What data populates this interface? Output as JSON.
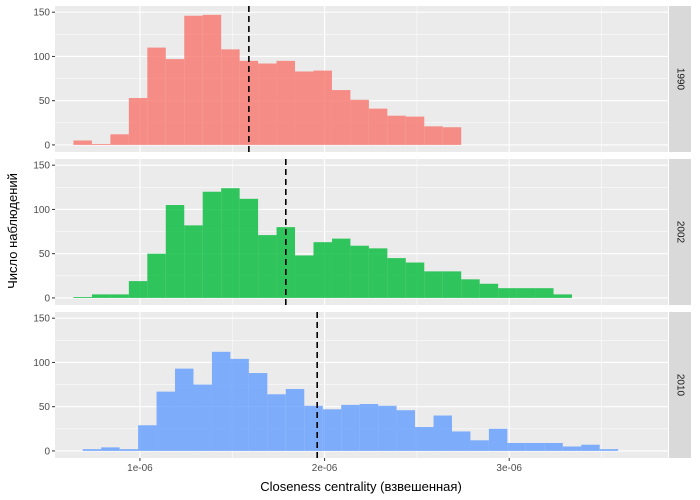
{
  "chart_data": {
    "type": "bar",
    "subtype": "faceted-histogram",
    "xlabel": "Closeness centrality (взвешенная)",
    "ylabel": "Число наблюдений",
    "xlim": [
      5.4e-07,
      3.86e-06
    ],
    "ylim": [
      -8,
      157
    ],
    "x_ticks": [
      1e-06,
      2e-06,
      3e-06
    ],
    "x_tick_labels": [
      "1e-06",
      "2e-06",
      "3e-06"
    ],
    "y_ticks": [
      0,
      50,
      100,
      150
    ],
    "y_tick_labels": [
      "0",
      "50",
      "100",
      "150"
    ],
    "bin_width": 1e-07,
    "grid": true,
    "legend": "none",
    "panels": [
      {
        "label": "1990",
        "color": "#F8766D",
        "mean_line": 1.59e-06,
        "bin_starts": [
          6.4e-07,
          7.4e-07,
          8.4e-07,
          9.4e-07,
          1.04e-06,
          1.14e-06,
          1.24e-06,
          1.34e-06,
          1.44e-06,
          1.54e-06,
          1.64e-06,
          1.74e-06,
          1.84e-06,
          1.94e-06,
          2.04e-06,
          2.14e-06,
          2.24e-06,
          2.34e-06,
          2.44e-06,
          2.54e-06,
          2.64e-06
        ],
        "values": [
          5,
          1,
          12,
          53,
          110,
          97,
          146,
          147,
          108,
          95,
          92,
          95,
          83,
          84,
          62,
          51,
          41,
          33,
          32,
          21,
          20
        ]
      },
      {
        "label": "2002",
        "color": "#00BA38",
        "mean_line": 1.79e-06,
        "bin_starts": [
          6.4e-07,
          7.4e-07,
          8.4e-07,
          9.4e-07,
          1.04e-06,
          1.14e-06,
          1.24e-06,
          1.34e-06,
          1.44e-06,
          1.54e-06,
          1.64e-06,
          1.74e-06,
          1.84e-06,
          1.94e-06,
          2.04e-06,
          2.14e-06,
          2.24e-06,
          2.34e-06,
          2.44e-06,
          2.54e-06,
          2.64e-06,
          2.74e-06,
          2.84e-06,
          2.94e-06,
          3.04e-06,
          3.14e-06,
          3.24e-06,
          3.34e-06
        ],
        "values": [
          1,
          4,
          4,
          19,
          50,
          105,
          82,
          120,
          124,
          112,
          71,
          80,
          48,
          63,
          67,
          59,
          56,
          45,
          40,
          30,
          30,
          21,
          16,
          11,
          11,
          11,
          4,
          0
        ]
      },
      {
        "label": "2010",
        "color": "#619CFF",
        "mean_line": 1.96e-06,
        "bin_starts": [
          6.9e-07,
          7.9e-07,
          8.9e-07,
          9.9e-07,
          1.09e-06,
          1.19e-06,
          1.29e-06,
          1.39e-06,
          1.49e-06,
          1.59e-06,
          1.69e-06,
          1.79e-06,
          1.89e-06,
          1.99e-06,
          2.09e-06,
          2.19e-06,
          2.29e-06,
          2.39e-06,
          2.49e-06,
          2.59e-06,
          2.69e-06,
          2.79e-06,
          2.89e-06,
          2.99e-06,
          3.09e-06,
          3.19e-06,
          3.29e-06,
          3.39e-06,
          3.49e-06,
          3.59e-06,
          3.69e-06
        ],
        "values": [
          2,
          4,
          2,
          29,
          67,
          93,
          75,
          112,
          104,
          88,
          64,
          70,
          51,
          47,
          52,
          53,
          51,
          46,
          27,
          40,
          22,
          12,
          25,
          9,
          9,
          9,
          5,
          7,
          2,
          0,
          0
        ]
      }
    ]
  }
}
